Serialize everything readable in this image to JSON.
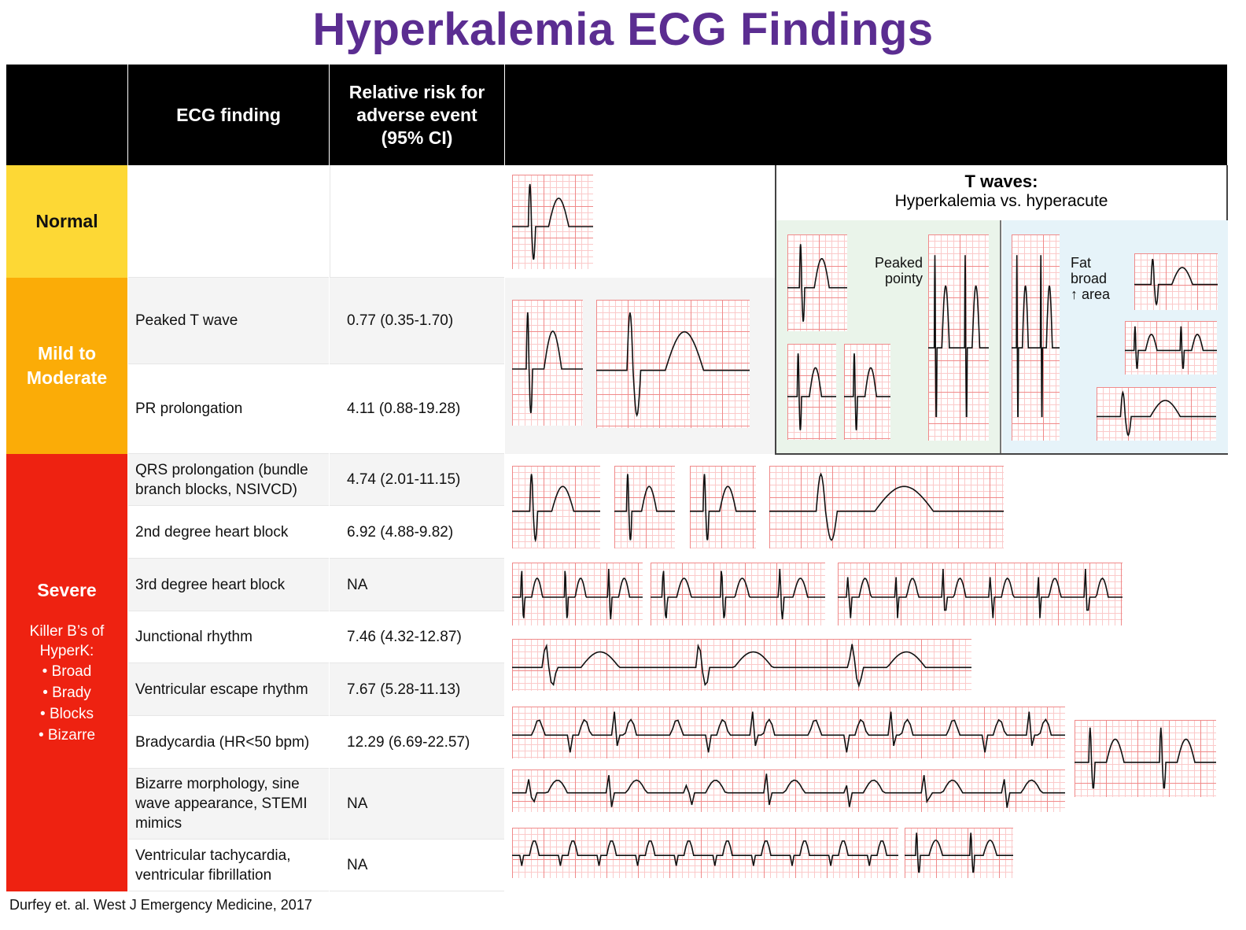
{
  "title": "Hyperkalemia ECG Findings",
  "header": {
    "finding": "ECG finding",
    "risk": "Relative risk for adverse event (95% CI)"
  },
  "colors": {
    "title": "#5b2d91",
    "normal": "#fdd835",
    "mild": "#fbac07",
    "severe": "#ee2211",
    "t_green": "#eaf4ea",
    "t_blue": "#e6f3f9"
  },
  "categories": {
    "normal": "Normal",
    "mild": "Mild to Moderate",
    "severe": "Severe",
    "severe_note": "Killer B’s of HyperK:",
    "killer_bs": [
      "• Broad",
      "• Brady",
      "• Blocks",
      "• Bizarre"
    ]
  },
  "rows": [
    {
      "finding": "Peaked T wave",
      "risk": "0.77 (0.35-1.70)"
    },
    {
      "finding": "PR prolongation",
      "risk": "4.11 (0.88-19.28)"
    },
    {
      "finding": "QRS prolongation (bundle branch blocks, NSIVCD)",
      "risk": "4.74 (2.01-11.15)"
    },
    {
      "finding": "2nd degree heart block",
      "risk": "6.92 (4.88-9.82)"
    },
    {
      "finding": "3rd degree heart block",
      "risk": "NA"
    },
    {
      "finding": "Junctional rhythm",
      "risk": "7.46 (4.32-12.87)"
    },
    {
      "finding": "Ventricular escape rhythm",
      "risk": "7.67 (5.28-11.13)"
    },
    {
      "finding": "Bradycardia (HR<50 bpm)",
      "risk": "12.29 (6.69-22.57)"
    },
    {
      "finding": "Bizarre morphology, sine wave appearance, STEMI mimics",
      "risk": "NA"
    },
    {
      "finding": "Ventricular tachycardia, ventricular fibrillation",
      "risk": "NA"
    }
  ],
  "t_waves": {
    "title": "T waves:",
    "subtitle": "Hyperkalemia vs. hyperacute",
    "peaked_1": "Peaked",
    "peaked_2": "pointy",
    "fat_1": "Fat",
    "fat_2": "broad",
    "fat_3": "↑ area"
  },
  "citation": "Durfey et. al. West J Emergency Medicine, 2017"
}
